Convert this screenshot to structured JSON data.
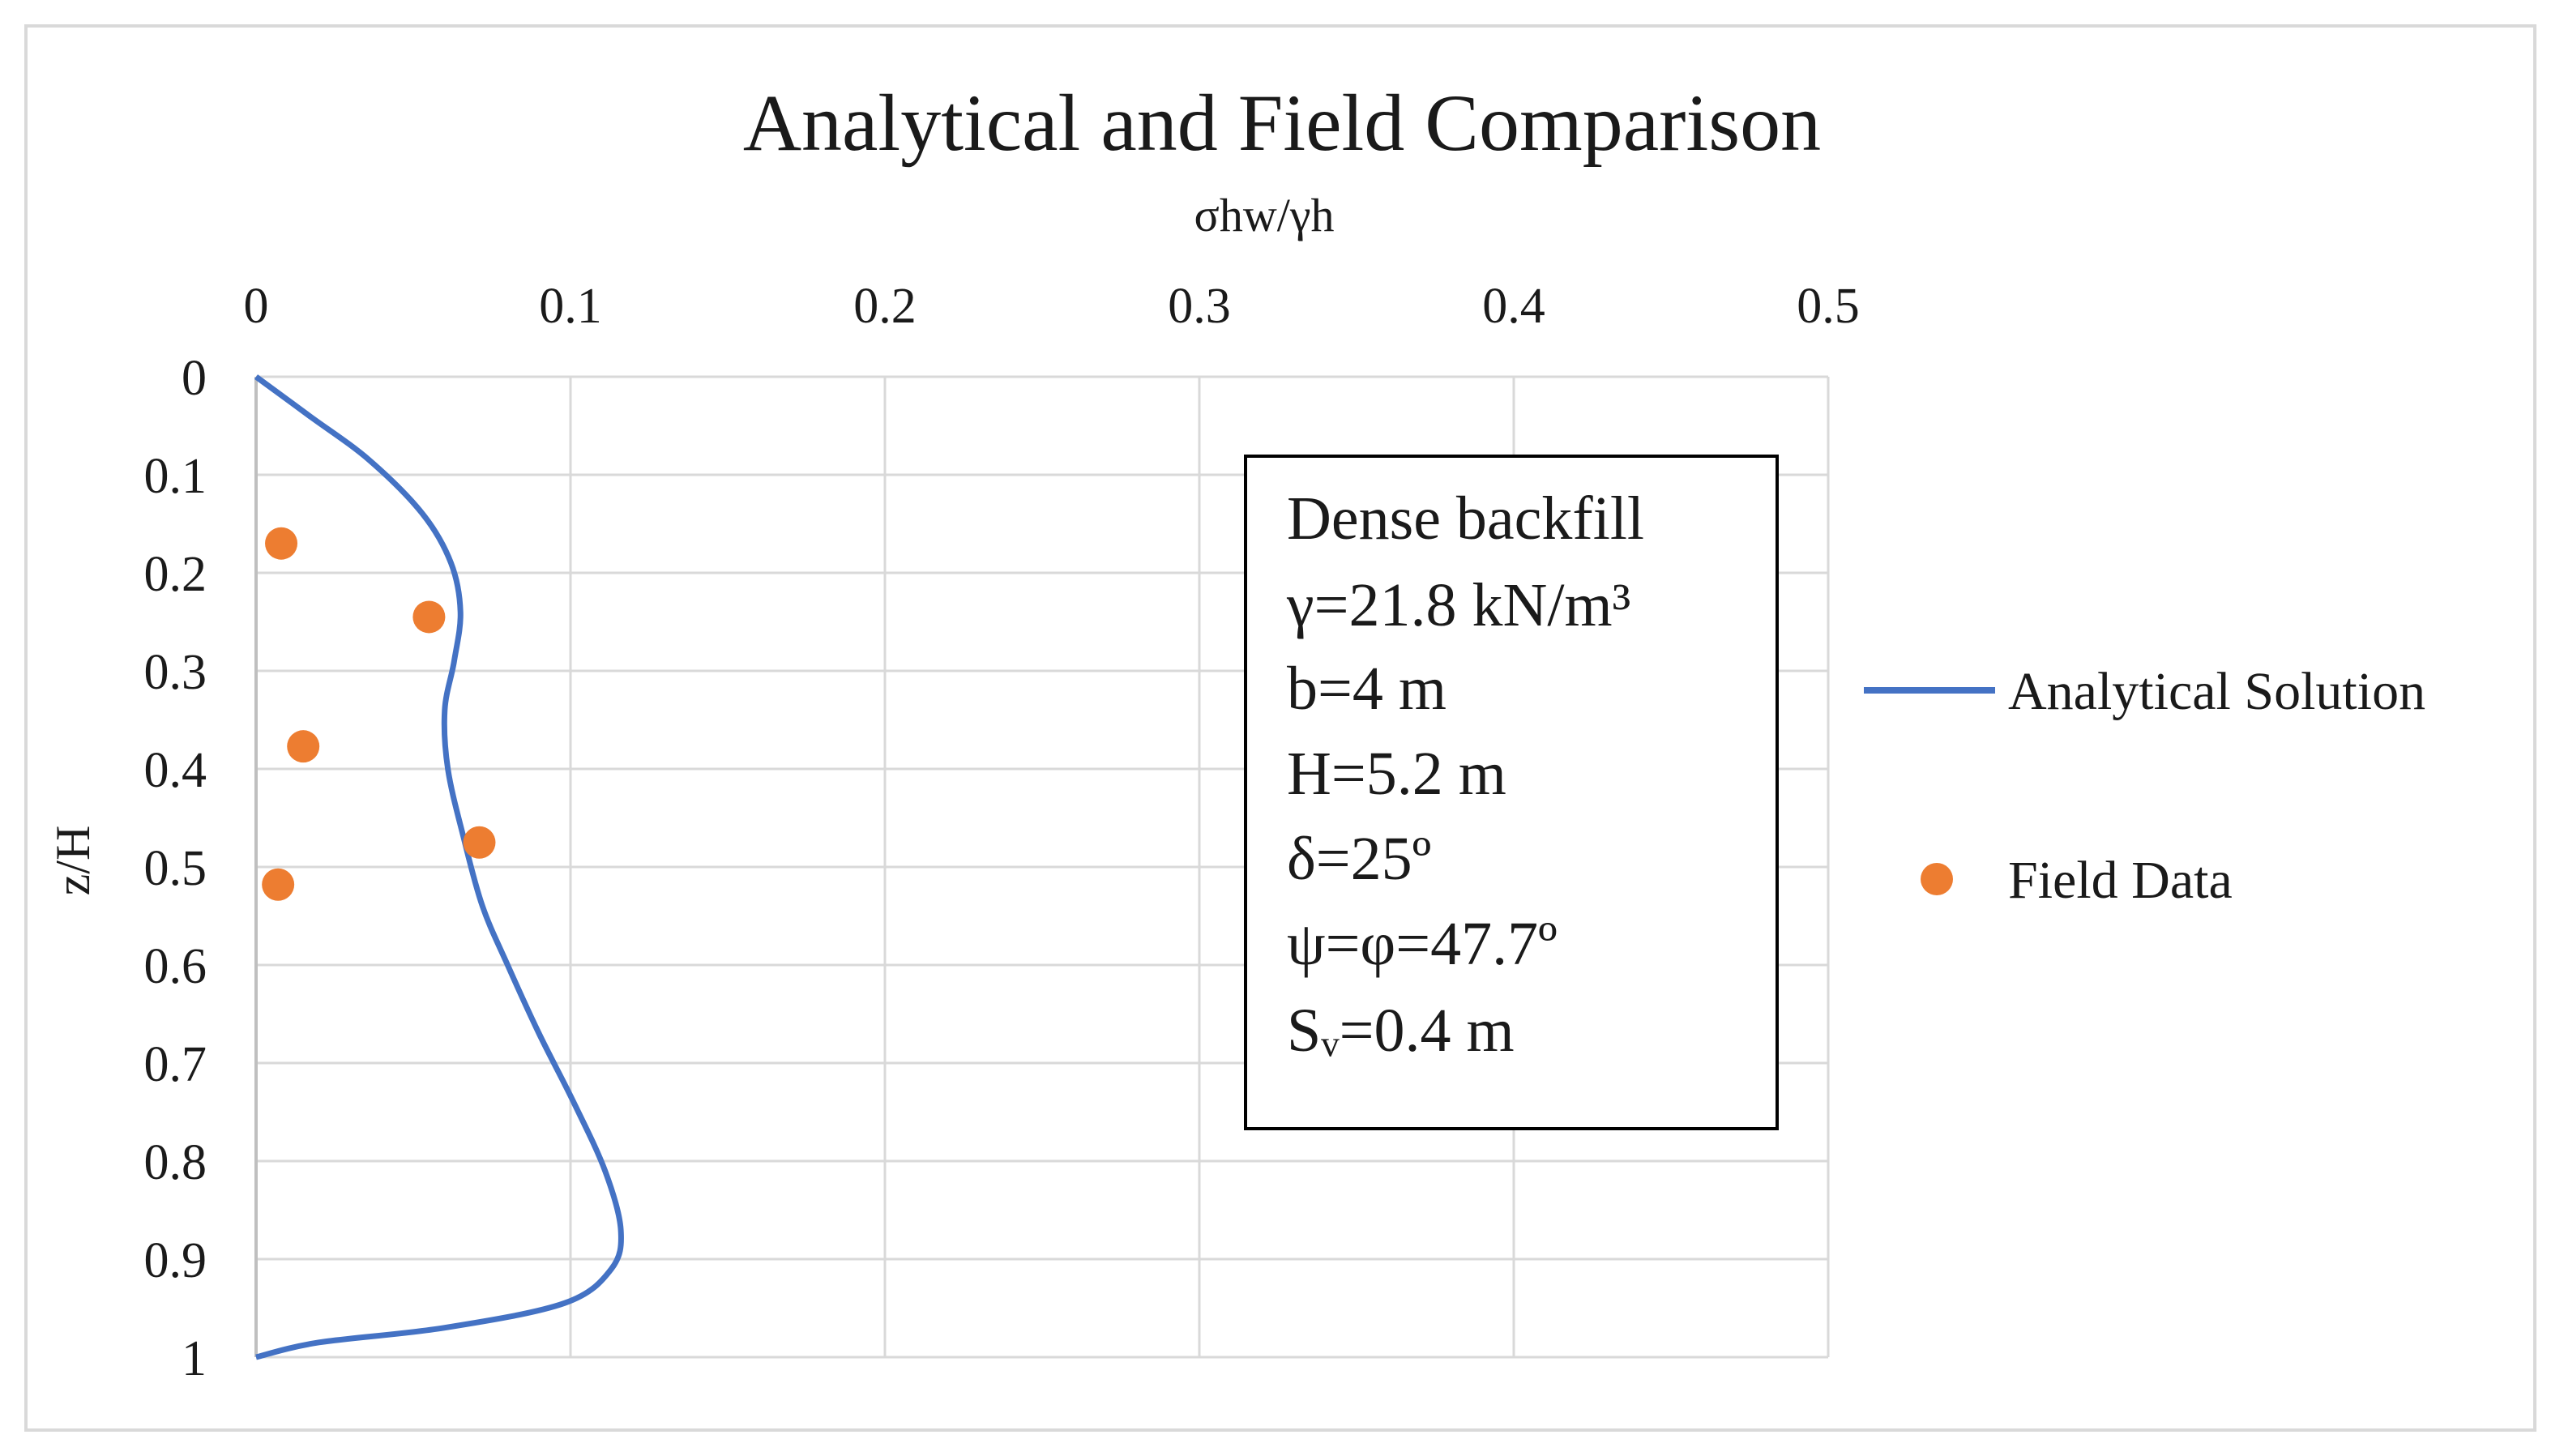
{
  "chart_data": {
    "type": "line",
    "title": "Analytical and Field Comparison",
    "xlabel": "σhw/γh",
    "ylabel": "z/H",
    "xlim": [
      0,
      0.5
    ],
    "ylim": [
      0,
      1
    ],
    "x_axis_position": "top",
    "y_axis_inverted": true,
    "grid": true,
    "x_ticks": [
      "0",
      "0.1",
      "0.2",
      "0.3",
      "0.4",
      "0.5"
    ],
    "y_ticks": [
      "0",
      "0.1",
      "0.2",
      "0.3",
      "0.4",
      "0.5",
      "0.6",
      "0.7",
      "0.8",
      "0.9",
      "1"
    ],
    "legend_position": "right",
    "series": [
      {
        "name": "Analytical Solution",
        "kind": "line",
        "color": "#4472c4",
        "points": [
          {
            "x": 0.0,
            "y": 0.0
          },
          {
            "x": 0.017,
            "y": 0.04
          },
          {
            "x": 0.036,
            "y": 0.085
          },
          {
            "x": 0.053,
            "y": 0.14
          },
          {
            "x": 0.062,
            "y": 0.19
          },
          {
            "x": 0.065,
            "y": 0.24
          },
          {
            "x": 0.063,
            "y": 0.29
          },
          {
            "x": 0.06,
            "y": 0.34
          },
          {
            "x": 0.061,
            "y": 0.4
          },
          {
            "x": 0.066,
            "y": 0.47
          },
          {
            "x": 0.072,
            "y": 0.54
          },
          {
            "x": 0.08,
            "y": 0.6
          },
          {
            "x": 0.09,
            "y": 0.67
          },
          {
            "x": 0.101,
            "y": 0.74
          },
          {
            "x": 0.111,
            "y": 0.81
          },
          {
            "x": 0.116,
            "y": 0.87
          },
          {
            "x": 0.113,
            "y": 0.91
          },
          {
            "x": 0.098,
            "y": 0.945
          },
          {
            "x": 0.06,
            "y": 0.97
          },
          {
            "x": 0.02,
            "y": 0.985
          },
          {
            "x": 0.0,
            "y": 1.0
          }
        ]
      },
      {
        "name": "Field Data",
        "kind": "scatter",
        "color": "#ed7d31",
        "points": [
          {
            "x": 0.008,
            "y": 0.17
          },
          {
            "x": 0.055,
            "y": 0.245
          },
          {
            "x": 0.015,
            "y": 0.377
          },
          {
            "x": 0.071,
            "y": 0.475
          },
          {
            "x": 0.007,
            "y": 0.518
          }
        ]
      }
    ],
    "annotation_box": [
      "Dense backfill",
      "γ=21.8 kN/m³",
      "b=4 m",
      "H=5.2 m",
      "δ=25º",
      "ψ=φ=47.7º",
      "Sᵥ=0.4 m"
    ]
  }
}
